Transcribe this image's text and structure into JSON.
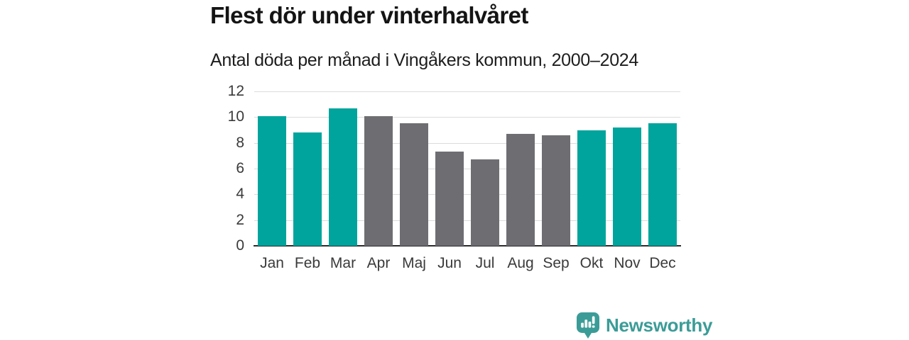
{
  "header": {
    "title": "Flest dör under vinterhalvåret",
    "subtitle": "Antal döda per månad i Vingåkers kommun, 2000–2024"
  },
  "chart_data": {
    "type": "bar",
    "title": "Flest dör under vinterhalvåret",
    "subtitle": "Antal döda per månad i Vingåkers kommun, 2000–2024",
    "categories": [
      "Jan",
      "Feb",
      "Mar",
      "Apr",
      "Maj",
      "Jun",
      "Jul",
      "Aug",
      "Sep",
      "Okt",
      "Nov",
      "Dec"
    ],
    "values": [
      10.1,
      8.8,
      10.7,
      10.1,
      9.5,
      7.3,
      6.7,
      8.7,
      8.6,
      9.0,
      9.2,
      9.5
    ],
    "bar_color_keys": [
      "teal",
      "teal",
      "teal",
      "gray",
      "gray",
      "gray",
      "gray",
      "gray",
      "gray",
      "teal",
      "teal",
      "teal"
    ],
    "colors": {
      "teal": "#00a49c",
      "gray": "#6e6e72"
    },
    "xlabel": "",
    "ylabel": "",
    "ylim": [
      0,
      12
    ],
    "yticks": [
      0,
      2,
      4,
      6,
      8,
      10,
      12
    ],
    "grid": "horizontal",
    "legend": "none",
    "axis_color": "#2b2b2b",
    "gridline_color": "#dcdcdc",
    "tick_label_color": "#3a3a3a"
  },
  "brand": {
    "name": "Newsworthy",
    "color": "#3b9c97",
    "icon": "speech-bubble-bar-chart"
  }
}
